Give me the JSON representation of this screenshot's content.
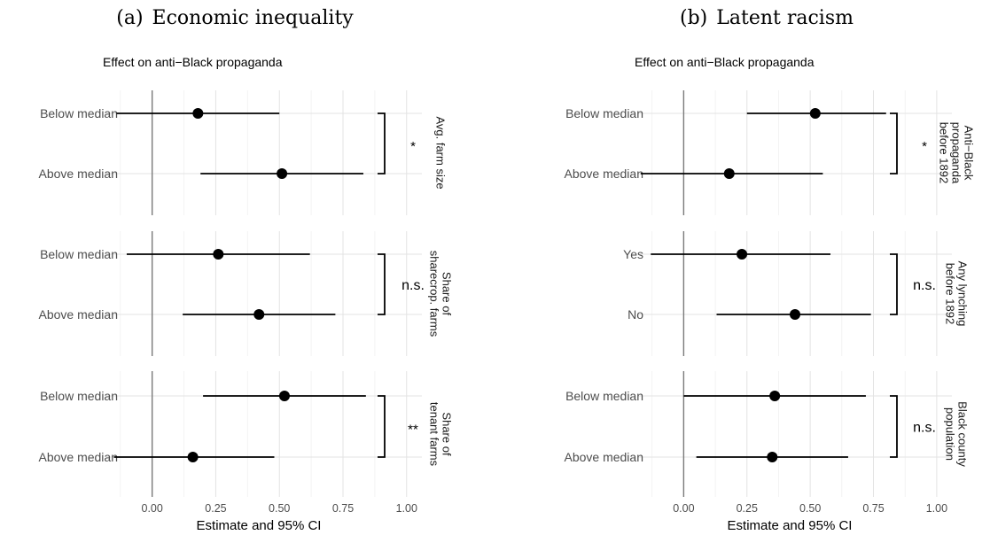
{
  "chart_data": [
    {
      "type": "scatter",
      "panel_label": "(a)",
      "title": "Economic inequality",
      "subtitle": "Effect on anti−Black propaganda",
      "xlabel": "Estimate and 95% CI",
      "xlim": [
        -0.18,
        1.06
      ],
      "xticks": [
        0.0,
        0.25,
        0.5,
        0.75,
        1.0
      ],
      "xtick_labels": [
        "0.00",
        "0.25",
        "0.50",
        "0.75",
        "1.00"
      ],
      "reference_line": 0,
      "grid": true,
      "facets": [
        {
          "label_lines": [
            "Avg. farm size"
          ],
          "significance": "*",
          "rows": [
            {
              "label": "Below median",
              "estimate": 0.18,
              "ci": [
                -0.14,
                0.5
              ]
            },
            {
              "label": "Above median",
              "estimate": 0.51,
              "ci": [
                0.19,
                0.83
              ]
            }
          ]
        },
        {
          "label_lines": [
            "Share of",
            "sharecrop. farms"
          ],
          "significance": "n.s.",
          "rows": [
            {
              "label": "Below median",
              "estimate": 0.26,
              "ci": [
                -0.1,
                0.62
              ]
            },
            {
              "label": "Above median",
              "estimate": 0.42,
              "ci": [
                0.12,
                0.72
              ]
            }
          ]
        },
        {
          "label_lines": [
            "Share of",
            "tenant farms"
          ],
          "significance": "**",
          "rows": [
            {
              "label": "Below median",
              "estimate": 0.52,
              "ci": [
                0.2,
                0.84
              ]
            },
            {
              "label": "Above median",
              "estimate": 0.16,
              "ci": [
                -0.15,
                0.48
              ]
            }
          ]
        }
      ]
    },
    {
      "type": "scatter",
      "panel_label": "(b)",
      "title": "Latent racism",
      "subtitle": "Effect on anti−Black propaganda",
      "xlabel": "Estimate and 95% CI",
      "xlim": [
        -0.18,
        1.06
      ],
      "xticks": [
        0.0,
        0.25,
        0.5,
        0.75,
        1.0
      ],
      "xtick_labels": [
        "0.00",
        "0.25",
        "0.50",
        "0.75",
        "1.00"
      ],
      "reference_line": 0,
      "grid": true,
      "facets": [
        {
          "label_lines": [
            "Anti−Black",
            "propaganda",
            "before 1892"
          ],
          "significance": "*",
          "rows": [
            {
              "label": "Below median",
              "estimate": 0.52,
              "ci": [
                0.25,
                0.8
              ]
            },
            {
              "label": "Above median",
              "estimate": 0.18,
              "ci": [
                -0.17,
                0.55
              ]
            }
          ]
        },
        {
          "label_lines": [
            "Any lynching",
            "before 1892"
          ],
          "significance": "n.s.",
          "rows": [
            {
              "label": "Yes",
              "estimate": 0.23,
              "ci": [
                -0.13,
                0.58
              ]
            },
            {
              "label": "No",
              "estimate": 0.44,
              "ci": [
                0.13,
                0.74
              ]
            }
          ]
        },
        {
          "label_lines": [
            "Black county",
            "population"
          ],
          "significance": "n.s.",
          "rows": [
            {
              "label": "Below median",
              "estimate": 0.36,
              "ci": [
                0.0,
                0.72
              ]
            },
            {
              "label": "Above median",
              "estimate": 0.35,
              "ci": [
                0.05,
                0.65
              ]
            }
          ]
        }
      ]
    }
  ]
}
